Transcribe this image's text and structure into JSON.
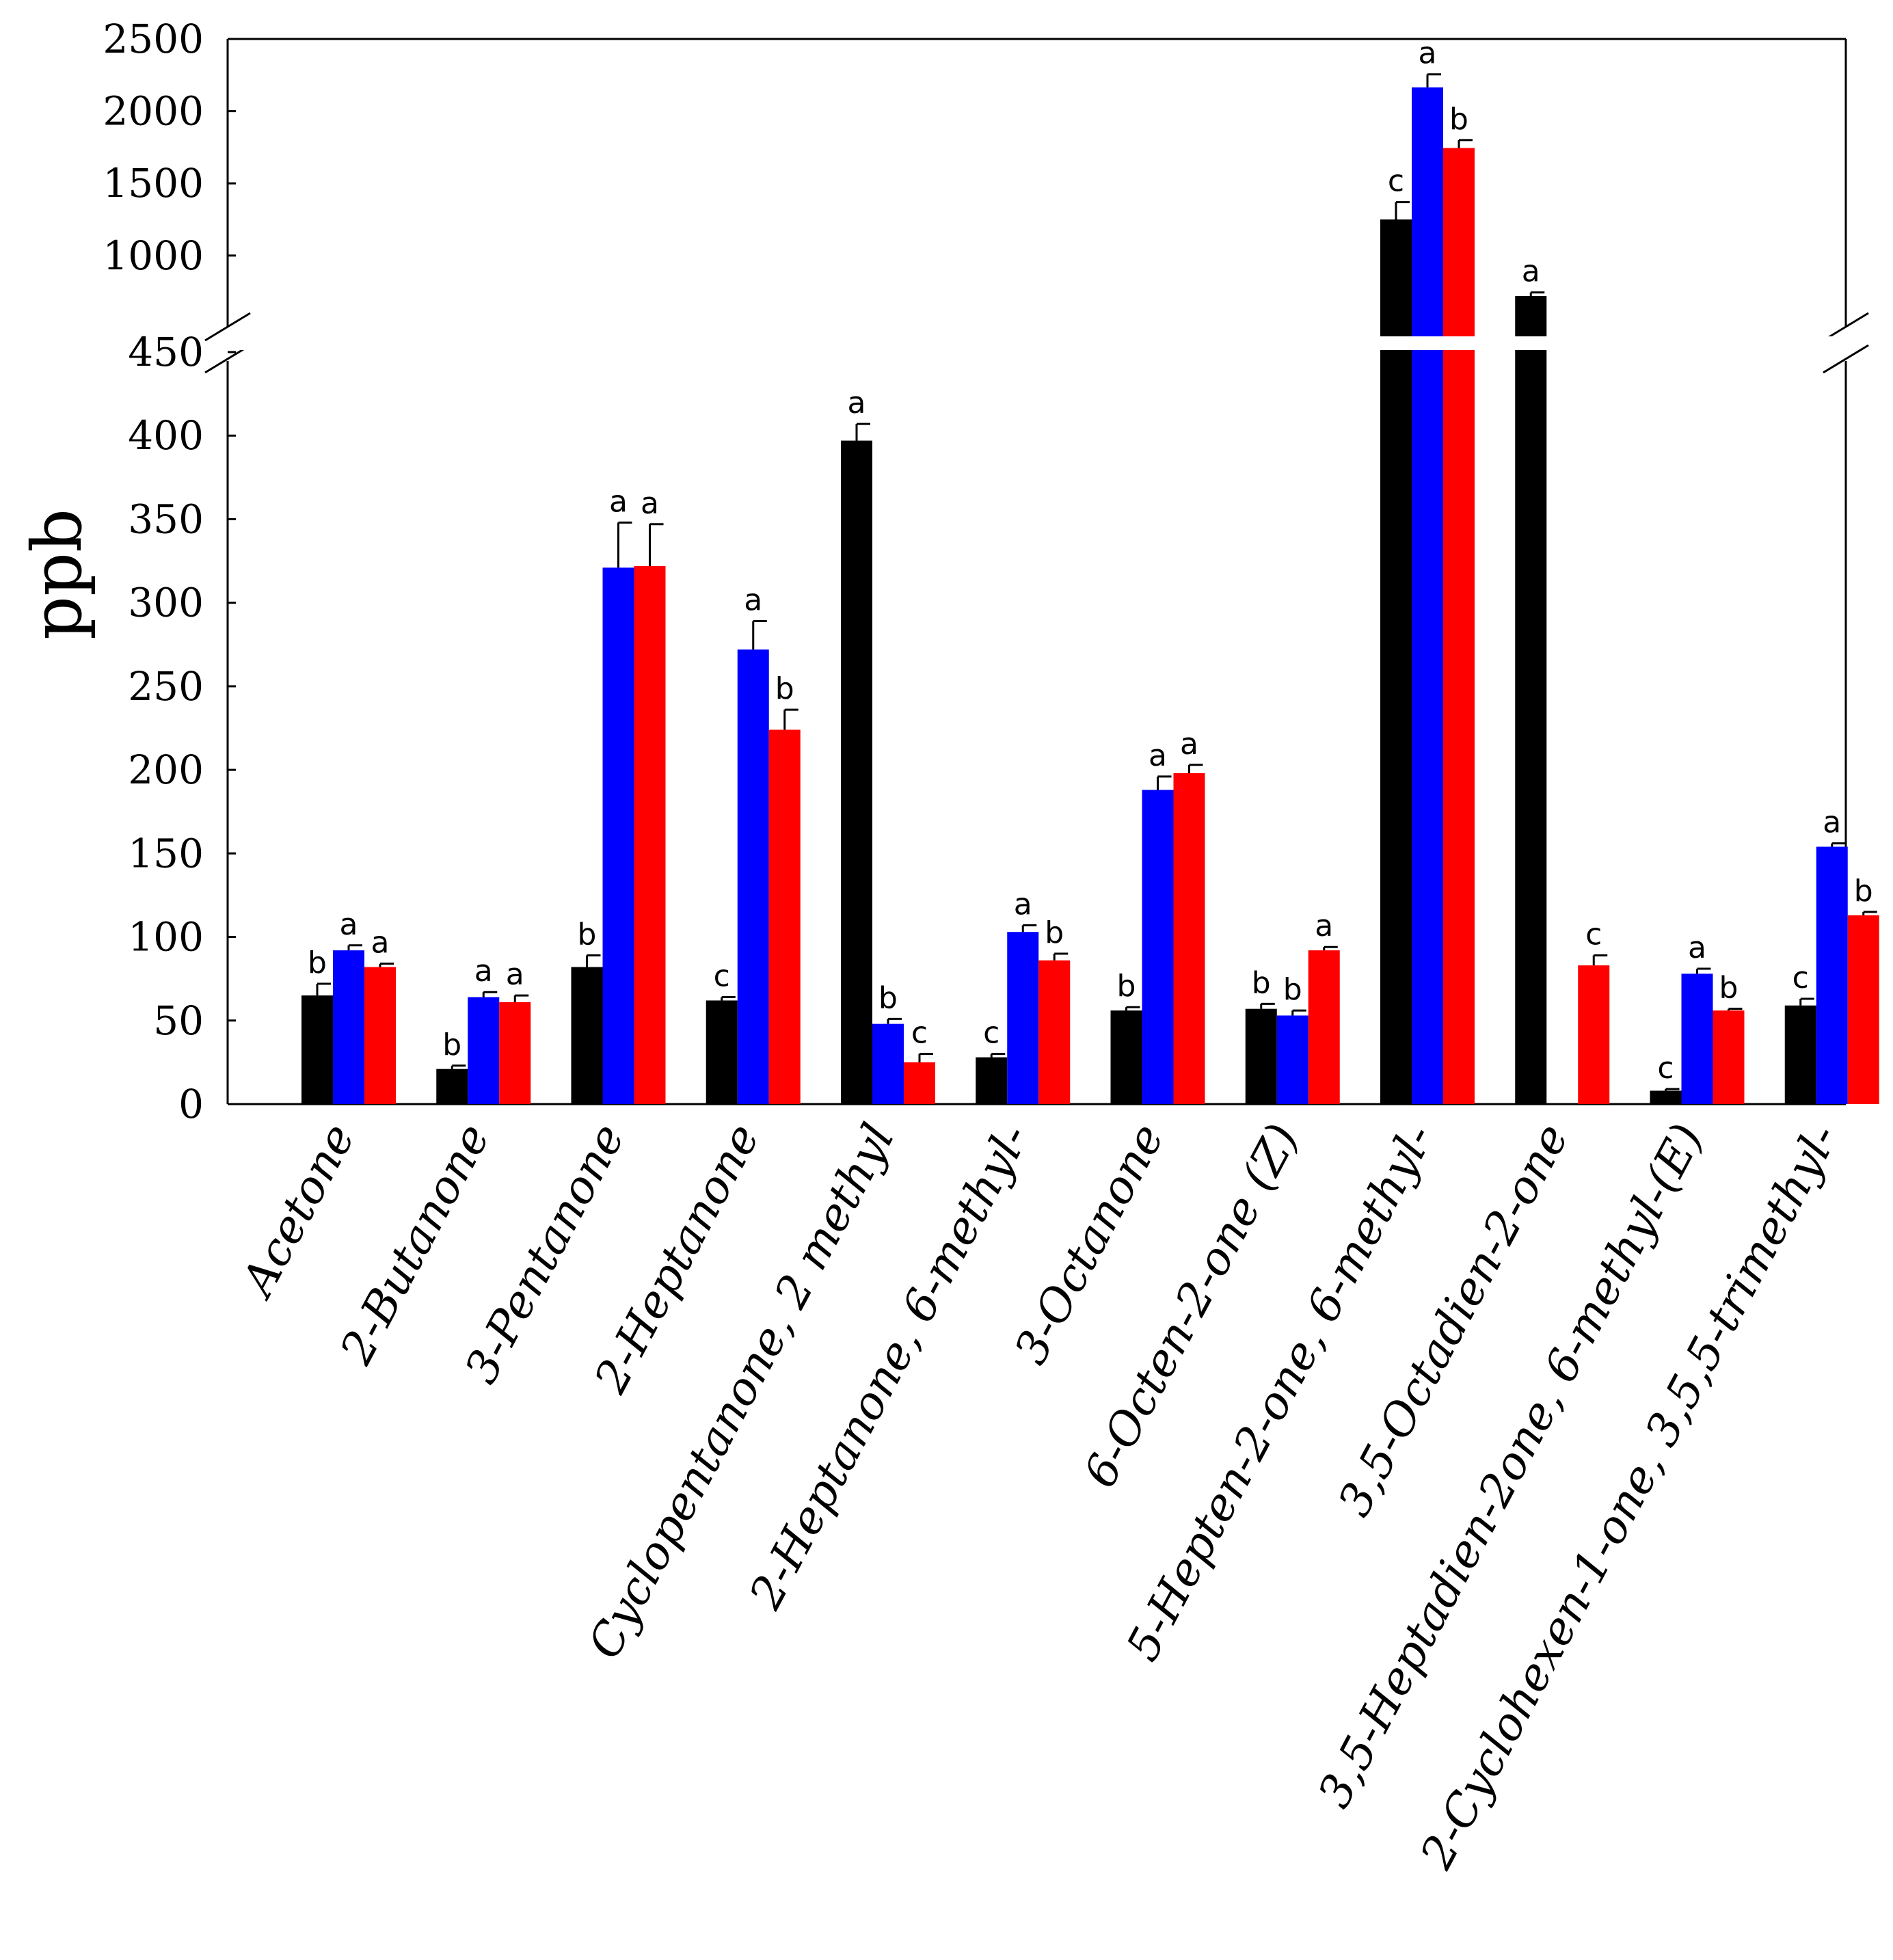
{
  "chart_data": {
    "type": "bar",
    "title": "",
    "xlabel": "",
    "ylabel": "ppb",
    "axis_break": {
      "lower_max": 450,
      "upper_min": 450,
      "upper_max": 2500
    },
    "lower_ticks": [
      0,
      50,
      100,
      150,
      200,
      250,
      300,
      350,
      400,
      450
    ],
    "upper_ticks": [
      1000,
      1500,
      2000,
      2500
    ],
    "tick_labels": {
      "0": "0",
      "50": "50",
      "100": "100",
      "150": "150",
      "200": "200",
      "250": "250",
      "300": "300",
      "350": "350",
      "400": "400",
      "450": "450",
      "1000": "1000",
      "1500": "1500",
      "2000": "2000",
      "2500": "2500"
    },
    "categories": [
      "Acetone",
      "2-Butanone",
      "3-Pentanone",
      "2-Heptanone",
      "Cyclopentanone, 2 methyl",
      "2-Heptanone, 6-methyl-",
      "3-Octanone",
      "6-Octen-2-one (Z)",
      "5-Hepten-2-one, 6-methyl-",
      "3,5-Octadien-2-one",
      "3,5-Heptadien-2one, 6-methyl-(E)",
      "2-Cyclohexen-1-one, 3,5,5-trimethyl-"
    ],
    "series": [
      {
        "name": "black",
        "color": "#000000",
        "values": [
          65,
          21,
          82,
          62,
          397,
          28,
          56,
          57,
          1250,
          720,
          8,
          59
        ],
        "errors": [
          7,
          2,
          7,
          2,
          10,
          2,
          2,
          3,
          120,
          25,
          1,
          4
        ],
        "letters": [
          "b",
          "b",
          "b",
          "c",
          "a",
          "c",
          "b",
          "b",
          "c",
          "a",
          "c",
          "c"
        ]
      },
      {
        "name": "blue",
        "color": "#0000ff",
        "values": [
          92,
          64,
          321,
          272,
          48,
          103,
          188,
          53,
          2165,
          null,
          78,
          154
        ],
        "errors": [
          3,
          3,
          27,
          17,
          3,
          4,
          8,
          3,
          90,
          null,
          3,
          2
        ],
        "letters": [
          "a",
          "a",
          "a",
          "a",
          "b",
          "a",
          "a",
          "b",
          "a",
          "",
          "a",
          "a"
        ]
      },
      {
        "name": "red",
        "color": "#ff0000",
        "values": [
          82,
          61,
          322,
          224,
          25,
          86,
          198,
          92,
          1745,
          83,
          56,
          113
        ],
        "errors": [
          2,
          4,
          25,
          12,
          5,
          4,
          5,
          2,
          55,
          6,
          1,
          2
        ],
        "letters": [
          "a",
          "a",
          "a",
          "b",
          "c",
          "b",
          "a",
          "a",
          "b",
          "c",
          "b",
          "b"
        ]
      }
    ]
  }
}
